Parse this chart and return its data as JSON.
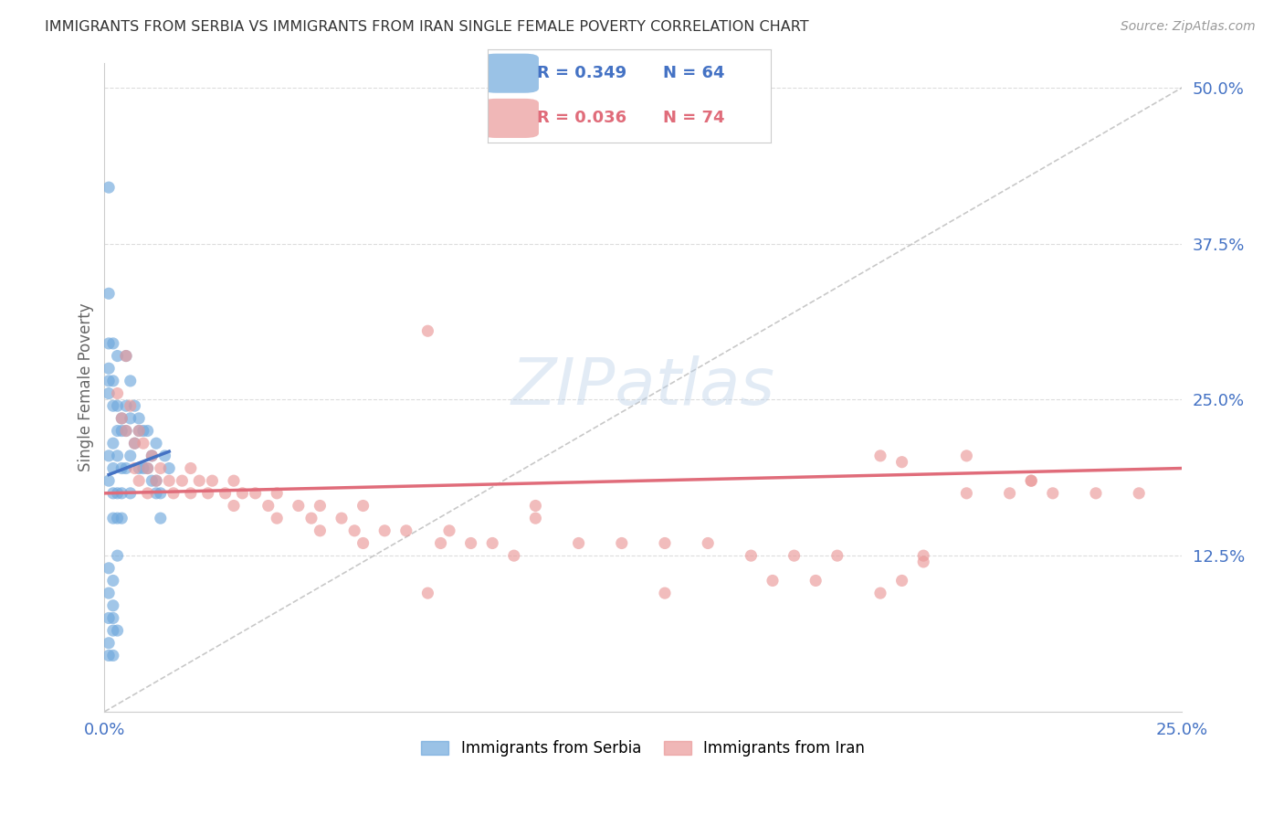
{
  "title": "IMMIGRANTS FROM SERBIA VS IMMIGRANTS FROM IRAN SINGLE FEMALE POVERTY CORRELATION CHART",
  "source": "Source: ZipAtlas.com",
  "ylabel": "Single Female Poverty",
  "xlim": [
    0.0,
    0.25
  ],
  "ylim": [
    0.0,
    0.52
  ],
  "serbia_color": "#6fa8dc",
  "iran_color": "#ea9999",
  "serbia_line_color": "#4472c4",
  "iran_line_color": "#e06c7a",
  "serbia_R": "0.349",
  "serbia_N": "64",
  "iran_R": "0.036",
  "iran_N": "74",
  "legend_text_serbia_color": "#4472c4",
  "legend_text_iran_color": "#e06c7a",
  "diag_color": "#bbbbbb",
  "grid_color": "#dddddd",
  "axis_tick_color": "#4472c4",
  "watermark": "ZIPatlas",
  "watermark_color": "#b8cfe8",
  "background_color": "#ffffff",
  "serbia_x": [
    0.001,
    0.001,
    0.001,
    0.001,
    0.001,
    0.001,
    0.001,
    0.001,
    0.002,
    0.002,
    0.002,
    0.002,
    0.002,
    0.002,
    0.002,
    0.002,
    0.003,
    0.003,
    0.003,
    0.003,
    0.003,
    0.003,
    0.004,
    0.004,
    0.004,
    0.004,
    0.004,
    0.005,
    0.005,
    0.005,
    0.005,
    0.006,
    0.006,
    0.006,
    0.006,
    0.007,
    0.007,
    0.008,
    0.008,
    0.008,
    0.009,
    0.009,
    0.01,
    0.01,
    0.011,
    0.011,
    0.012,
    0.012,
    0.013,
    0.013,
    0.001,
    0.002,
    0.003,
    0.001,
    0.002,
    0.003,
    0.001,
    0.002,
    0.001,
    0.002,
    0.001,
    0.014,
    0.015,
    0.012
  ],
  "serbia_y": [
    0.335,
    0.295,
    0.275,
    0.265,
    0.255,
    0.205,
    0.185,
    0.045,
    0.295,
    0.265,
    0.245,
    0.215,
    0.195,
    0.175,
    0.155,
    0.085,
    0.285,
    0.245,
    0.225,
    0.205,
    0.175,
    0.155,
    0.235,
    0.225,
    0.195,
    0.175,
    0.155,
    0.285,
    0.245,
    0.225,
    0.195,
    0.265,
    0.235,
    0.205,
    0.175,
    0.245,
    0.215,
    0.235,
    0.225,
    0.195,
    0.225,
    0.195,
    0.225,
    0.195,
    0.205,
    0.185,
    0.215,
    0.185,
    0.175,
    0.155,
    0.115,
    0.105,
    0.125,
    0.095,
    0.075,
    0.065,
    0.075,
    0.065,
    0.055,
    0.045,
    0.42,
    0.205,
    0.195,
    0.175
  ],
  "iran_x": [
    0.003,
    0.004,
    0.005,
    0.005,
    0.006,
    0.007,
    0.007,
    0.008,
    0.008,
    0.009,
    0.01,
    0.01,
    0.011,
    0.012,
    0.013,
    0.015,
    0.016,
    0.018,
    0.02,
    0.02,
    0.022,
    0.024,
    0.025,
    0.028,
    0.03,
    0.03,
    0.032,
    0.035,
    0.038,
    0.04,
    0.04,
    0.045,
    0.048,
    0.05,
    0.05,
    0.055,
    0.058,
    0.06,
    0.06,
    0.065,
    0.07,
    0.075,
    0.078,
    0.08,
    0.085,
    0.09,
    0.095,
    0.1,
    0.11,
    0.12,
    0.13,
    0.14,
    0.15,
    0.16,
    0.17,
    0.18,
    0.19,
    0.2,
    0.21,
    0.22,
    0.23,
    0.075,
    0.2,
    0.165,
    0.185,
    0.215,
    0.185,
    0.155,
    0.24,
    0.215,
    0.18,
    0.1,
    0.13,
    0.19
  ],
  "iran_y": [
    0.255,
    0.235,
    0.285,
    0.225,
    0.245,
    0.215,
    0.195,
    0.225,
    0.185,
    0.215,
    0.195,
    0.175,
    0.205,
    0.185,
    0.195,
    0.185,
    0.175,
    0.185,
    0.195,
    0.175,
    0.185,
    0.175,
    0.185,
    0.175,
    0.185,
    0.165,
    0.175,
    0.175,
    0.165,
    0.175,
    0.155,
    0.165,
    0.155,
    0.165,
    0.145,
    0.155,
    0.145,
    0.165,
    0.135,
    0.145,
    0.145,
    0.305,
    0.135,
    0.145,
    0.135,
    0.135,
    0.125,
    0.155,
    0.135,
    0.135,
    0.135,
    0.135,
    0.125,
    0.125,
    0.125,
    0.205,
    0.125,
    0.175,
    0.175,
    0.175,
    0.175,
    0.095,
    0.205,
    0.105,
    0.105,
    0.185,
    0.2,
    0.105,
    0.175,
    0.185,
    0.095,
    0.165,
    0.095,
    0.12
  ]
}
